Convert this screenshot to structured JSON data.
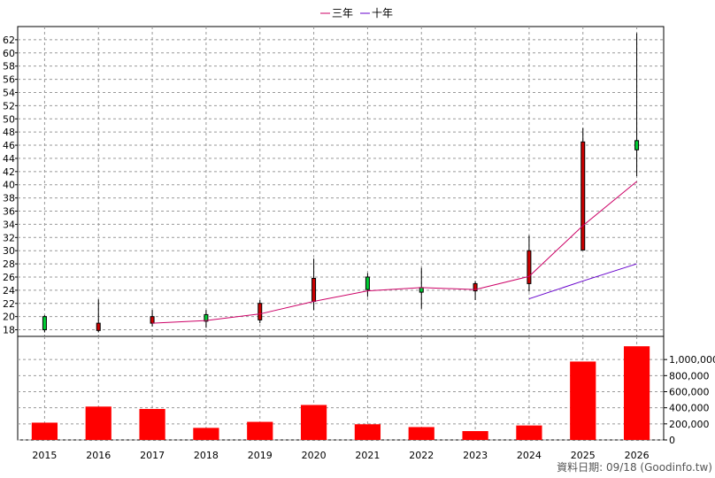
{
  "legend": {
    "items": [
      {
        "label": "三年",
        "color": "#cc0066"
      },
      {
        "label": "十年",
        "color": "#6600cc"
      }
    ]
  },
  "footer": {
    "source": "資料日期: 09/18  (Goodinfo.tw)"
  },
  "chart_data": [
    {
      "type": "candlestick",
      "title": "",
      "x": [
        "2015",
        "2016",
        "2017",
        "2018",
        "2019",
        "2020",
        "2021",
        "2022",
        "2023",
        "2024",
        "2025",
        "2026"
      ],
      "ylim": [
        17,
        64
      ],
      "yticks": [
        18,
        20,
        22,
        24,
        26,
        28,
        30,
        32,
        34,
        36,
        38,
        40,
        42,
        44,
        46,
        48,
        50,
        52,
        54,
        56,
        58,
        60,
        62
      ],
      "ohlc": [
        {
          "open": 18.0,
          "high": 20.2,
          "low": 17.6,
          "close": 20.0
        },
        {
          "open": 19.0,
          "high": 22.6,
          "low": 17.6,
          "close": 17.9
        },
        {
          "open": 20.0,
          "high": 21.0,
          "low": 18.5,
          "close": 19.0
        },
        {
          "open": 19.3,
          "high": 21.0,
          "low": 18.3,
          "close": 20.3
        },
        {
          "open": 22.0,
          "high": 22.5,
          "low": 19.0,
          "close": 19.5
        },
        {
          "open": 25.8,
          "high": 28.8,
          "low": 21.0,
          "close": 22.3
        },
        {
          "open": 24.1,
          "high": 26.6,
          "low": 23.0,
          "close": 26.0
        },
        {
          "open": 23.7,
          "high": 27.4,
          "low": 21.2,
          "close": 24.4
        },
        {
          "open": 25.0,
          "high": 25.4,
          "low": 22.5,
          "close": 23.9
        },
        {
          "open": 30.0,
          "high": 32.3,
          "low": 23.8,
          "close": 25.0
        },
        {
          "open": 46.5,
          "high": 48.6,
          "low": 30.1,
          "close": 30.1
        },
        {
          "open": 45.3,
          "high": 63.0,
          "low": 41.3,
          "close": 46.7
        }
      ],
      "series": [
        {
          "name": "三年",
          "color": "#cc0066",
          "values": [
            null,
            null,
            19.0,
            19.4,
            20.4,
            22.3,
            23.9,
            24.4,
            24.1,
            26.1,
            33.8,
            40.5
          ]
        },
        {
          "name": "十年",
          "color": "#6600cc",
          "values": [
            null,
            null,
            null,
            null,
            null,
            null,
            null,
            null,
            null,
            22.7,
            25.4,
            28.0
          ]
        }
      ],
      "up_color": "#00cc33",
      "down_color": "#cc0000",
      "grid": true
    },
    {
      "type": "bar",
      "title": "",
      "categories": [
        "2015",
        "2016",
        "2017",
        "2018",
        "2019",
        "2020",
        "2021",
        "2022",
        "2023",
        "2024",
        "2025",
        "2026"
      ],
      "values": [
        215000,
        415000,
        385000,
        150000,
        225000,
        435000,
        195000,
        160000,
        110000,
        180000,
        975000,
        1165000
      ],
      "ylim": [
        0,
        1200000
      ],
      "yticks": [
        0,
        200000,
        400000,
        600000,
        800000,
        1000000
      ],
      "ytick_labels": [
        "0",
        "200,000",
        "400,000",
        "600,000",
        "800,000",
        "1,000,000"
      ],
      "color": "#ff0000",
      "grid": true
    }
  ]
}
